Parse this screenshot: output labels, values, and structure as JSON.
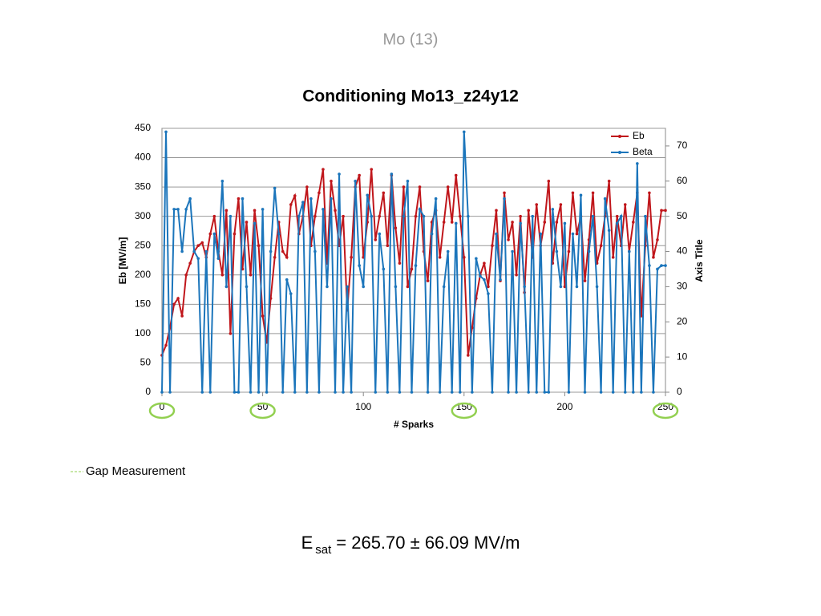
{
  "slide_title": "Mo (13)",
  "chart_data": {
    "type": "line",
    "title": "Conditioning Mo13_z24y12",
    "x_label": "# Sparks",
    "y_label": "Eb [MV/m]",
    "y2_label": "Axis Title",
    "x": [
      0,
      2,
      4,
      6,
      8,
      10,
      12,
      14,
      16,
      18,
      20,
      22,
      24,
      26,
      28,
      30,
      32,
      34,
      36,
      38,
      40,
      42,
      44,
      46,
      48,
      50,
      52,
      54,
      56,
      58,
      60,
      62,
      64,
      66,
      68,
      70,
      72,
      74,
      76,
      78,
      80,
      82,
      84,
      86,
      88,
      90,
      92,
      94,
      96,
      98,
      100,
      102,
      104,
      106,
      108,
      110,
      112,
      114,
      116,
      118,
      120,
      122,
      124,
      126,
      128,
      130,
      132,
      134,
      136,
      138,
      140,
      142,
      144,
      146,
      148,
      150,
      152,
      154,
      156,
      158,
      160,
      162,
      164,
      166,
      168,
      170,
      172,
      174,
      176,
      178,
      180,
      182,
      184,
      186,
      188,
      190,
      192,
      194,
      196,
      198,
      200,
      202,
      204,
      206,
      208,
      210,
      212,
      214,
      216,
      218,
      220,
      222,
      224,
      226,
      228,
      230,
      232,
      234,
      236,
      238,
      240,
      242,
      244,
      246,
      248,
      250
    ],
    "xlim": [
      0,
      250
    ],
    "xticks": [
      0,
      50,
      100,
      150,
      200,
      250
    ],
    "ylim": [
      0,
      450
    ],
    "yticks": [
      0,
      50,
      100,
      150,
      200,
      250,
      300,
      350,
      400,
      450
    ],
    "y2lim": [
      0,
      75
    ],
    "y2ticks": [
      0,
      10,
      20,
      30,
      40,
      50,
      60,
      70
    ],
    "grid": true,
    "legend": "upper right",
    "series": [
      {
        "name": "Eb",
        "color": "#c0161b",
        "values": [
          63,
          80,
          110,
          150,
          160,
          130,
          200,
          220,
          240,
          250,
          255,
          230,
          270,
          300,
          240,
          200,
          310,
          100,
          270,
          330,
          210,
          290,
          200,
          310,
          250,
          130,
          85,
          160,
          230,
          290,
          240,
          230,
          320,
          335,
          270,
          300,
          350,
          250,
          300,
          340,
          380,
          220,
          360,
          310,
          250,
          300,
          140,
          230,
          350,
          370,
          230,
          290,
          380,
          260,
          300,
          340,
          250,
          370,
          280,
          220,
          350,
          180,
          210,
          300,
          350,
          240,
          190,
          290,
          310,
          230,
          290,
          350,
          290,
          370,
          300,
          230,
          63,
          110,
          160,
          200,
          220,
          180,
          250,
          310,
          190,
          340,
          260,
          290,
          200,
          300,
          170,
          310,
          230,
          320,
          250,
          290,
          360,
          220,
          290,
          320,
          180,
          240,
          340,
          270,
          300,
          190,
          260,
          340,
          220,
          250,
          300,
          360,
          230,
          300,
          250,
          320,
          240,
          290,
          340,
          130,
          250,
          340,
          230,
          260,
          310,
          310
        ]
      },
      {
        "name": "Beta",
        "color": "#1b75bb",
        "axis": "y2",
        "values": [
          0,
          74,
          0,
          52,
          52,
          40,
          52,
          55,
          40,
          38,
          0,
          40,
          0,
          45,
          38,
          60,
          30,
          50,
          0,
          0,
          55,
          30,
          0,
          48,
          0,
          52,
          0,
          40,
          58,
          45,
          0,
          32,
          28,
          0,
          50,
          54,
          0,
          55,
          40,
          0,
          52,
          30,
          55,
          0,
          62,
          0,
          30,
          0,
          60,
          36,
          30,
          56,
          50,
          0,
          45,
          35,
          0,
          62,
          30,
          0,
          50,
          60,
          0,
          36,
          52,
          50,
          0,
          45,
          55,
          0,
          30,
          40,
          0,
          48,
          0,
          74,
          50,
          0,
          38,
          33,
          32,
          28,
          0,
          45,
          32,
          55,
          0,
          40,
          0,
          48,
          30,
          0,
          50,
          0,
          45,
          0,
          0,
          52,
          40,
          30,
          48,
          0,
          45,
          30,
          56,
          0,
          40,
          50,
          30,
          0,
          55,
          46,
          0,
          48,
          50,
          0,
          40,
          0,
          65,
          0,
          50,
          36,
          0,
          35,
          36,
          36
        ]
      }
    ],
    "annotation": {
      "label": "Gap Measurement",
      "x": [
        0,
        50,
        150,
        250
      ],
      "color": "#92d050"
    }
  },
  "formula": {
    "symbol": "E",
    "subscript": "sat",
    "text": "= 265.70 ± 66.09 MV/m"
  }
}
